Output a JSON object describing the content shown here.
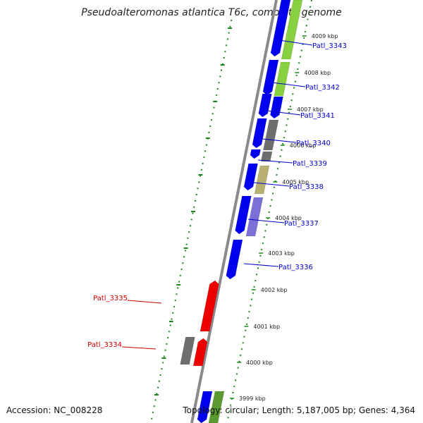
{
  "title": "Pseudoalteromonas atlantica T6c, complete genome",
  "footer": {
    "accession": "Accession: NC_008228",
    "topology": "Topology: circular; Length: 5,187,005 bp; Genes: 4,364"
  },
  "colors": {
    "forward_label": "#0000cc",
    "reverse_label": "#cc0000",
    "cds_forward": "#0000ee",
    "cds_reverse": "#ee0000",
    "gray_feature": "#6e6e6e",
    "khaki_feature": "#b8b070",
    "lavender_feature": "#7a70d8",
    "lime_feature": "#88d040",
    "green_feature": "#5a9a30",
    "backbone": "#8a8a8a",
    "dotted_ring": "#1a8a1a"
  },
  "kbp_ticks": [
    "4009 kbp",
    "4008 kbp",
    "4007 kbp",
    "4006 kbp",
    "4005 kbp",
    "4004 kbp",
    "4003 kbp",
    "4002 kbp",
    "4001 kbp",
    "4000 kbp",
    "3999 kbp"
  ],
  "gene_labels_forward": [
    "Patl_3343",
    "Patl_3342",
    "Patl_3341",
    "Patl_3340",
    "Patl_3339",
    "Patl_3338",
    "Patl_3337",
    "Patl_3336"
  ],
  "gene_labels_reverse": [
    "Patl_3335",
    "Patl_3334"
  ]
}
